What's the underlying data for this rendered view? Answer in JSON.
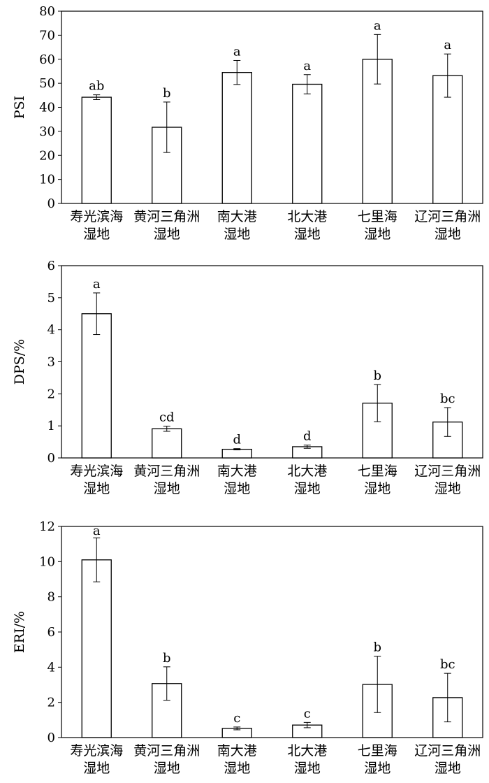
{
  "chart_data": [
    {
      "type": "bar",
      "ylabel": "PSI",
      "ylim": [
        0,
        80
      ],
      "yticks": [
        0,
        10,
        20,
        30,
        40,
        50,
        60,
        70,
        80
      ],
      "categories": [
        [
          "寿光滨海",
          "湿地"
        ],
        [
          "黄河三角洲",
          "湿地"
        ],
        [
          "南大港",
          "湿地"
        ],
        [
          "北大港",
          "湿地"
        ],
        [
          "七里海",
          "湿地"
        ],
        [
          "辽河三角洲",
          "湿地"
        ]
      ],
      "values": [
        44.2,
        31.7,
        54.5,
        49.6,
        60.0,
        53.2
      ],
      "errors": [
        1.0,
        10.5,
        5.0,
        4.0,
        10.3,
        9.0
      ],
      "sig_letters": [
        "ab",
        "b",
        "a",
        "a",
        "a",
        "a"
      ]
    },
    {
      "type": "bar",
      "ylabel": "DPS/%",
      "ylim": [
        0,
        6
      ],
      "yticks": [
        0,
        1,
        2,
        3,
        4,
        5,
        6
      ],
      "categories": [
        [
          "寿光滨海",
          "湿地"
        ],
        [
          "黄河三角洲",
          "湿地"
        ],
        [
          "南大港",
          "湿地"
        ],
        [
          "北大港",
          "湿地"
        ],
        [
          "七里海",
          "湿地"
        ],
        [
          "辽河三角洲",
          "湿地"
        ]
      ],
      "values": [
        4.5,
        0.91,
        0.27,
        0.35,
        1.71,
        1.12
      ],
      "errors": [
        0.65,
        0.08,
        0.02,
        0.05,
        0.58,
        0.45
      ],
      "sig_letters": [
        "a",
        "cd",
        "d",
        "d",
        "b",
        "bc"
      ]
    },
    {
      "type": "bar",
      "ylabel": "ERI/%",
      "ylim": [
        0,
        12
      ],
      "yticks": [
        0,
        2,
        4,
        6,
        8,
        10,
        12
      ],
      "categories": [
        [
          "寿光滨海",
          "湿地"
        ],
        [
          "黄河三角洲",
          "湿地"
        ],
        [
          "南大港",
          "湿地"
        ],
        [
          "北大港",
          "湿地"
        ],
        [
          "七里海",
          "湿地"
        ],
        [
          "辽河三角洲",
          "湿地"
        ]
      ],
      "values": [
        10.1,
        3.07,
        0.52,
        0.71,
        3.02,
        2.27
      ],
      "errors": [
        1.25,
        0.95,
        0.08,
        0.15,
        1.6,
        1.38
      ],
      "sig_letters": [
        "a",
        "b",
        "c",
        "c",
        "b",
        "bc"
      ]
    }
  ]
}
